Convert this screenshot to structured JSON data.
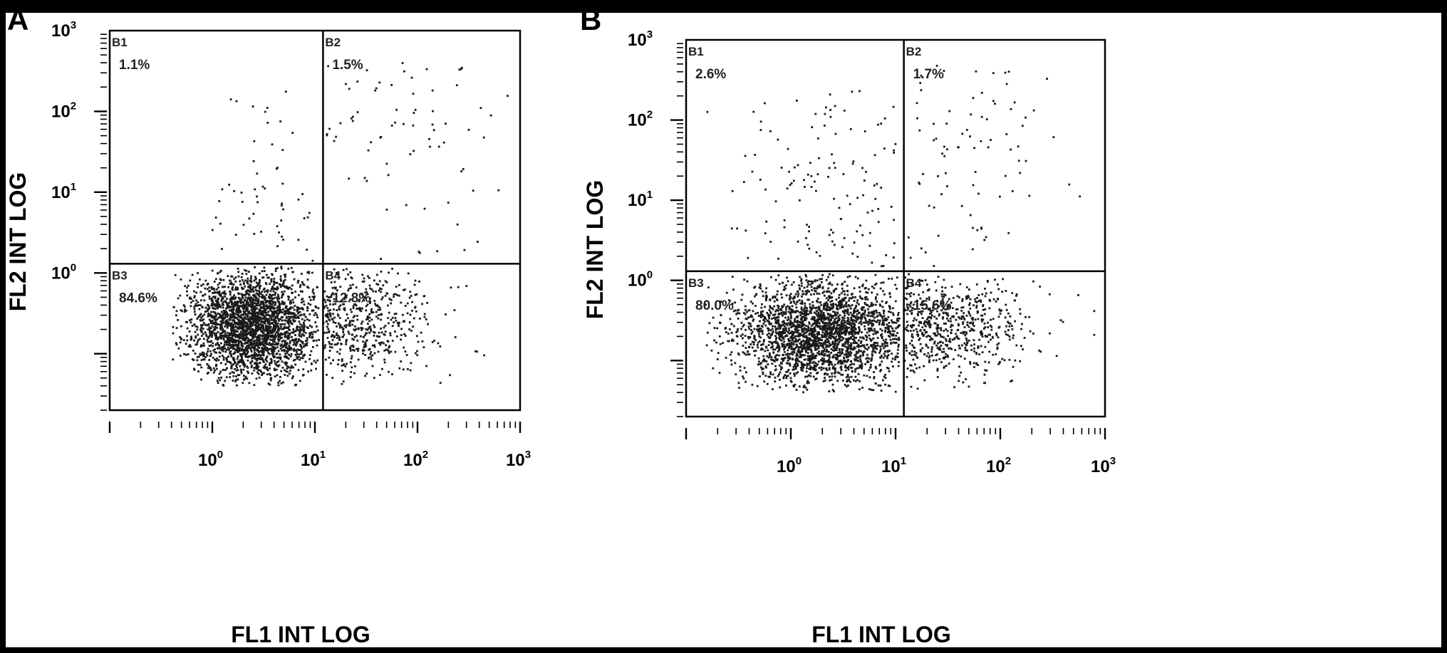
{
  "figure": {
    "background_color": "#ffffff",
    "frame_color": "#000000",
    "dot_color": "#1a1a1a"
  },
  "chart_data": [
    {
      "type": "scatter",
      "panel_label": "A",
      "xlabel": "FL1 INT LOG",
      "ylabel": "FL2 INT LOG",
      "x_scale": "log",
      "y_scale": "log",
      "xlim": [
        0.1,
        1000
      ],
      "ylim": [
        0.02,
        1000
      ],
      "x_ticks": [
        {
          "base": "10",
          "exp": "0"
        },
        {
          "base": "10",
          "exp": "1"
        },
        {
          "base": "10",
          "exp": "2"
        },
        {
          "base": "10",
          "exp": "3"
        }
      ],
      "y_ticks": [
        {
          "base": "10",
          "exp": "0"
        },
        {
          "base": "10",
          "exp": "1"
        },
        {
          "base": "10",
          "exp": "2"
        },
        {
          "base": "10",
          "exp": "3"
        }
      ],
      "quadrant_gate": {
        "x": 12,
        "y": 1.3
      },
      "quadrants": [
        {
          "name": "B1",
          "percent": "1.1%"
        },
        {
          "name": "B2",
          "percent": "1.5%"
        },
        {
          "name": "B3",
          "percent": "84.6%"
        },
        {
          "name": "B4",
          "percent": "12.8%"
        }
      ],
      "populations": [
        {
          "quadrant": "B3",
          "count": 2600,
          "x_range": [
            0.4,
            11
          ],
          "y_range": [
            0.04,
            1.2
          ],
          "x_center": 2.5,
          "y_center": 0.22
        },
        {
          "quadrant": "B4",
          "count": 520,
          "x_range": [
            12,
            900
          ],
          "y_range": [
            0.04,
            1.2
          ],
          "x_center": 22,
          "y_center": 0.25
        },
        {
          "quadrant": "B1",
          "count": 55,
          "x_range": [
            0.8,
            11
          ],
          "y_range": [
            1.4,
            200
          ],
          "x_center": 4,
          "y_center": 8
        },
        {
          "quadrant": "B2",
          "count": 75,
          "x_range": [
            13,
            900
          ],
          "y_range": [
            1.4,
            400
          ],
          "x_center": 60,
          "y_center": 60
        }
      ]
    },
    {
      "type": "scatter",
      "panel_label": "B",
      "xlabel": "FL1 INT LOG",
      "ylabel": "FL2 INT LOG",
      "x_scale": "log",
      "y_scale": "log",
      "xlim": [
        0.1,
        1000
      ],
      "ylim": [
        0.02,
        1000
      ],
      "x_ticks": [
        {
          "base": "10",
          "exp": "0"
        },
        {
          "base": "10",
          "exp": "1"
        },
        {
          "base": "10",
          "exp": "2"
        },
        {
          "base": "10",
          "exp": "3"
        }
      ],
      "y_ticks": [
        {
          "base": "10",
          "exp": "0"
        },
        {
          "base": "10",
          "exp": "1"
        },
        {
          "base": "10",
          "exp": "2"
        },
        {
          "base": "10",
          "exp": "3"
        }
      ],
      "quadrant_gate": {
        "x": 12,
        "y": 1.3
      },
      "quadrants": [
        {
          "name": "B1",
          "percent": "2.6%"
        },
        {
          "name": "B2",
          "percent": "1.7%"
        },
        {
          "name": "B3",
          "percent": "80.0%"
        },
        {
          "name": "B4",
          "percent": "15.6%"
        }
      ],
      "populations": [
        {
          "quadrant": "B3",
          "count": 2500,
          "x_range": [
            0.15,
            11
          ],
          "y_range": [
            0.04,
            1.2
          ],
          "x_center": 2.0,
          "y_center": 0.22
        },
        {
          "quadrant": "B4",
          "count": 620,
          "x_range": [
            12,
            1000
          ],
          "y_range": [
            0.04,
            1.2
          ],
          "x_center": 25,
          "y_center": 0.25
        },
        {
          "quadrant": "B1",
          "count": 130,
          "x_range": [
            0.15,
            11
          ],
          "y_range": [
            1.4,
            300
          ],
          "x_center": 3,
          "y_center": 8
        },
        {
          "quadrant": "B2",
          "count": 85,
          "x_range": [
            13,
            600
          ],
          "y_range": [
            1.4,
            500
          ],
          "x_center": 40,
          "y_center": 40
        }
      ]
    }
  ]
}
